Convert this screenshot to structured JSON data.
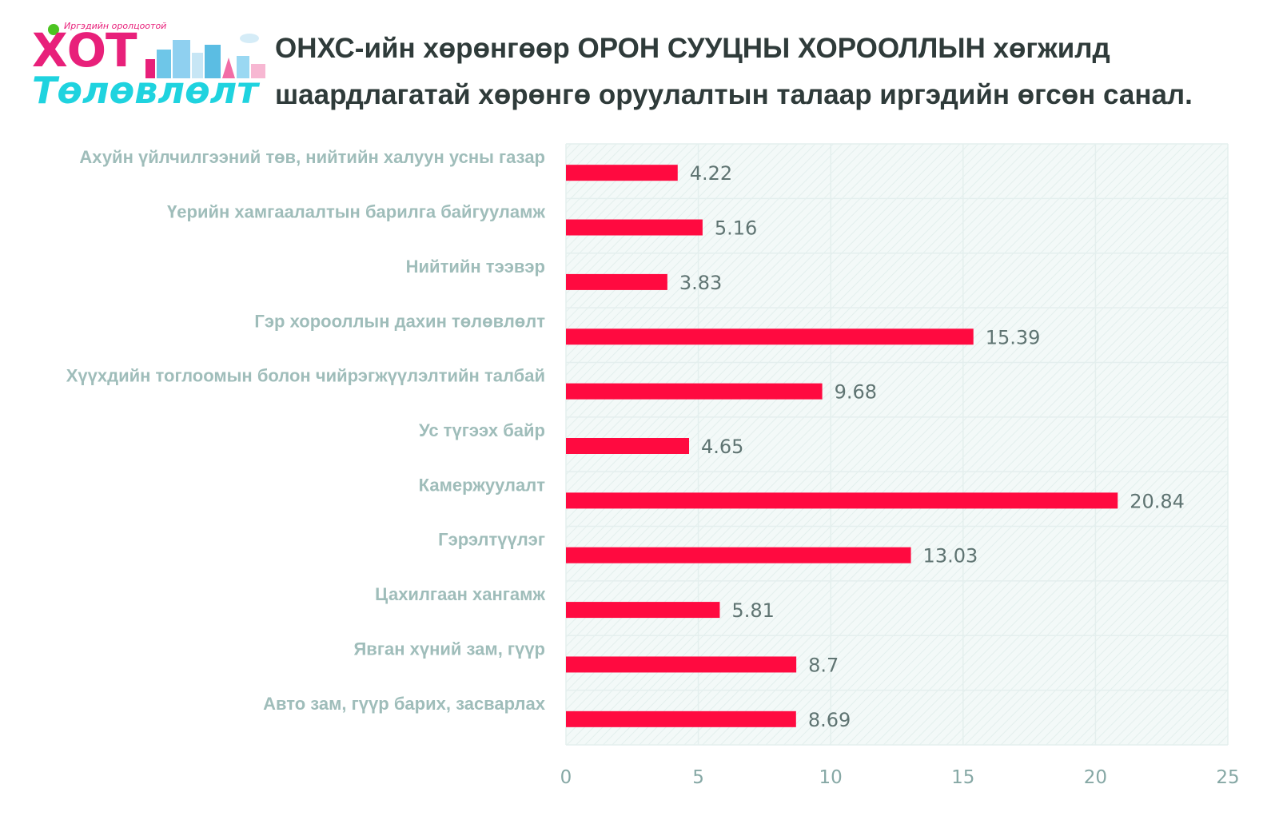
{
  "logo": {
    "tagline": "Иргэдийн оролцоотой",
    "word1": "ХОТ",
    "word2": "Төлөвлөлт"
  },
  "title": "ОНХС-ийн хөрөнгөөр ОРОН СУУЦНЫ ХОРООЛЛЫН хөгжилд шаардлагатай хөрөнгө оруулалтын талаар иргэдийн өгсөн санал.",
  "colors": {
    "bar": "#ff0a40",
    "plot_bg": "#f3f9f8",
    "grid": "#e4efee",
    "category_text": "#9fbdba",
    "value_text": "#5f7472",
    "tick_text": "#86a8a5"
  },
  "chart_data": {
    "type": "bar",
    "orientation": "horizontal",
    "categories": [
      "Ахуйн үйлчилгээний төв, нийтийн халуун усны газар",
      "Үерийн хамгаалалтын барилга байгууламж",
      "Нийтийн тээвэр",
      "Гэр хорооллын дахин төлөвлөлт",
      "Хүүхдийн тоглоомын болон чийрэгжүүлэлтийн талбай",
      "Ус түгээх байр",
      "Камержуулалт",
      "Гэрэлтүүлэг",
      "Цахилгаан хангамж",
      "Явган хүний зам, гүүр",
      "Авто зам, гүүр барих, засварлах"
    ],
    "values": [
      4.22,
      5.16,
      3.83,
      15.39,
      9.68,
      4.65,
      20.84,
      13.03,
      5.81,
      8.7,
      8.69
    ],
    "value_labels": [
      "4.22",
      "5.16",
      "3.83",
      "15.39",
      "9.68",
      "4.65",
      "20.84",
      "13.03",
      "5.81",
      "8.7",
      "8.69"
    ],
    "xlim": [
      0,
      25
    ],
    "xticks": [
      "0",
      "5",
      "10",
      "15",
      "20",
      "25"
    ],
    "grid": true,
    "legend": false
  }
}
